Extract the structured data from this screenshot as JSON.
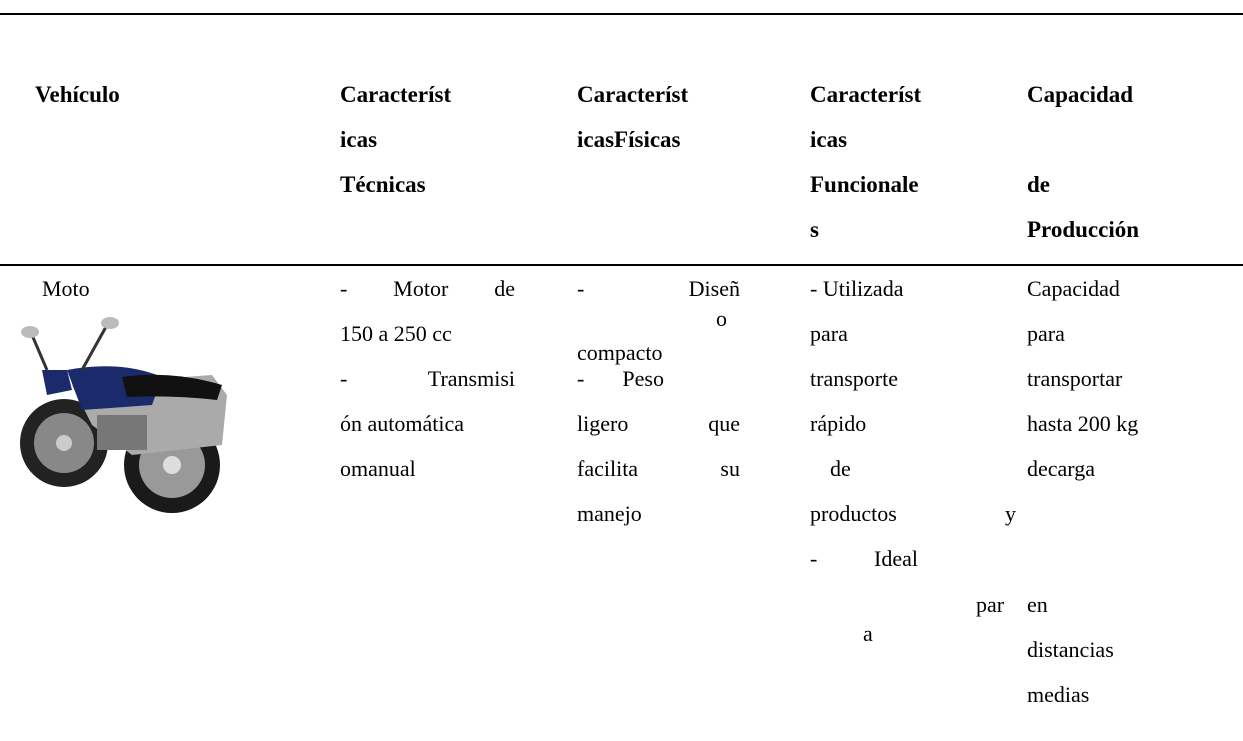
{
  "table": {
    "header": [
      {
        "lines": [
          "Vehículo"
        ]
      },
      {
        "lines": [
          "Característ",
          "icas",
          "Técnicas"
        ]
      },
      {
        "lines": [
          "Característ",
          "icasFísicas"
        ]
      },
      {
        "lines": [
          "Característ",
          "icas",
          "Funcionale",
          "s"
        ]
      },
      {
        "lines": [
          "Capacidad",
          "de",
          "Producción"
        ]
      }
    ],
    "rows": [
      [
        {
          "lines": [
            "Moto"
          ]
        },
        {
          "lines": [
            "- Motor de",
            "150 a 250 cc",
            "- Transmisi",
            "ón automática",
            "omanual"
          ]
        },
        {
          "lines": [
            "- Diseñ",
            "o",
            "compacto",
            "- Peso",
            "ligero que",
            "facilita su",
            "manejo"
          ]
        },
        {
          "lines": [
            "- Utilizada",
            "para",
            "transporte",
            "rápido",
            "de",
            "productos y",
            "- Ideal",
            "par",
            "a"
          ]
        },
        {
          "lines": [
            "Capacidad",
            "para",
            "transportar",
            "hasta 200 kg",
            "decarga",
            "en",
            "distancias",
            "medias"
          ]
        }
      ]
    ]
  }
}
